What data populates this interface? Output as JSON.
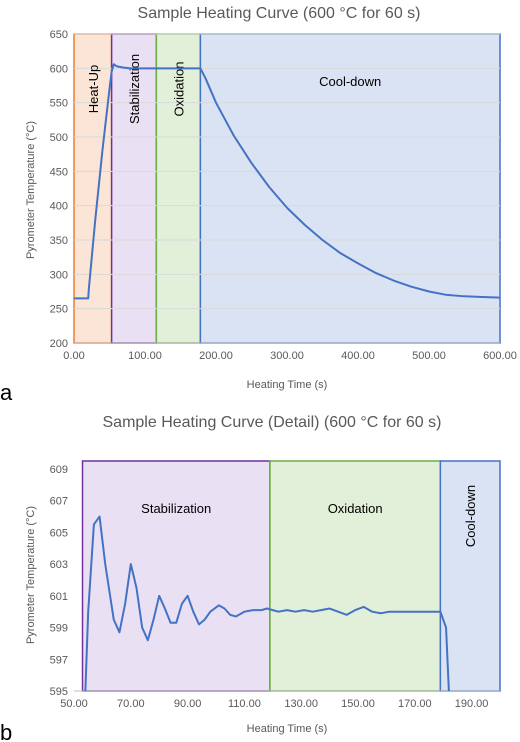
{
  "chart_data": [
    {
      "type": "line",
      "panel": "a",
      "title": "Sample Heating Curve (600 °C for 60 s)",
      "xlabel": "Heating Time (s)",
      "ylabel": "Pyrometer Temperature (°C)",
      "xlim": [
        0,
        600
      ],
      "ylim": [
        200,
        650
      ],
      "xticks": [
        "0.00",
        "100.00",
        "200.00",
        "300.00",
        "400.00",
        "500.00",
        "600.00"
      ],
      "yticks": [
        "200",
        "250",
        "300",
        "350",
        "400",
        "450",
        "500",
        "550",
        "600",
        "650"
      ],
      "grid": true,
      "regions": [
        {
          "label": "Heat-Up",
          "start": 0,
          "end": 53,
          "fill": "#fbe5d6",
          "stroke": "#ed7d31",
          "label_rotated": true
        },
        {
          "label": "Stabilization",
          "start": 53,
          "end": 116,
          "fill": "#e9e1f3",
          "stroke": "#7030a0",
          "label_rotated": true
        },
        {
          "label": "Oxidation",
          "start": 116,
          "end": 178,
          "fill": "#e2f0d9",
          "stroke": "#70ad47",
          "label_rotated": true
        },
        {
          "label": "Cool-down",
          "start": 178,
          "end": 600,
          "fill": "#dae3f3",
          "stroke": "#4472c4",
          "label_rotated": false
        }
      ],
      "series": [
        {
          "color": "#4472c4",
          "x": [
            0,
            20,
            21,
            30,
            40,
            50,
            53,
            56,
            60,
            65,
            70,
            80,
            90,
            100,
            116,
            130,
            150,
            178,
            185,
            200,
            225,
            250,
            275,
            300,
            325,
            350,
            375,
            400,
            425,
            450,
            475,
            500,
            525,
            550,
            575,
            600
          ],
          "y": [
            265,
            265,
            280,
            380,
            480,
            570,
            595,
            606,
            603,
            602,
            601,
            600,
            600,
            600,
            600,
            600,
            600,
            600,
            586,
            550,
            502,
            462,
            427,
            397,
            372,
            350,
            331,
            316,
            302,
            291,
            282,
            275,
            270,
            268,
            267,
            266
          ]
        }
      ]
    },
    {
      "type": "line",
      "panel": "b",
      "title": "Sample Heating Curve (Detail) (600 °C for 60 s)",
      "xlabel": "Heating Time (s)",
      "ylabel": "Pyrometer Temperature (°C)",
      "xlim": [
        50,
        200
      ],
      "ylim": [
        595,
        609.5
      ],
      "xticks": [
        "50.00",
        "70.00",
        "90.00",
        "110.00",
        "130.00",
        "150.00",
        "170.00",
        "190.00"
      ],
      "yticks": [
        "595",
        "597",
        "599",
        "601",
        "603",
        "605",
        "607",
        "609"
      ],
      "grid": false,
      "regions": [
        {
          "label": "Stabilization",
          "start": 53,
          "end": 119,
          "fill": "#e9e1f3",
          "stroke": "#7030a0",
          "label_rotated": false
        },
        {
          "label": "Oxidation",
          "start": 119,
          "end": 179,
          "fill": "#e2f0d9",
          "stroke": "#70ad47",
          "label_rotated": false
        },
        {
          "label": "Cool-down",
          "start": 179,
          "end": 200,
          "fill": "#dae3f3",
          "stroke": "#4472c4",
          "label_rotated": true
        }
      ],
      "series": [
        {
          "color": "#4472c4",
          "x": [
            54,
            55,
            57,
            59,
            61,
            64,
            66,
            68,
            70,
            72,
            74,
            76,
            78,
            80,
            82,
            84,
            86,
            88,
            90,
            92,
            94,
            96,
            98,
            101,
            103,
            105,
            107,
            110,
            113,
            116,
            118,
            120,
            122,
            125,
            128,
            131,
            134,
            137,
            140,
            143,
            146,
            149,
            152,
            155,
            158,
            161,
            164,
            167,
            170,
            173,
            176,
            179,
            181,
            182
          ],
          "y": [
            595,
            600,
            605.5,
            606,
            603,
            599.5,
            598.7,
            600.5,
            603,
            601.5,
            599,
            598.2,
            599.5,
            601,
            600.2,
            599.3,
            599.3,
            600.5,
            601,
            600,
            599.2,
            599.5,
            600,
            600.4,
            600.2,
            599.8,
            599.7,
            600,
            600.1,
            600.1,
            600.2,
            600.1,
            600,
            600.1,
            600,
            600.1,
            600,
            600.1,
            600.2,
            600,
            599.8,
            600.1,
            600.3,
            600,
            599.9,
            600,
            600,
            600,
            600,
            600,
            600,
            600,
            599,
            595
          ]
        }
      ]
    }
  ]
}
